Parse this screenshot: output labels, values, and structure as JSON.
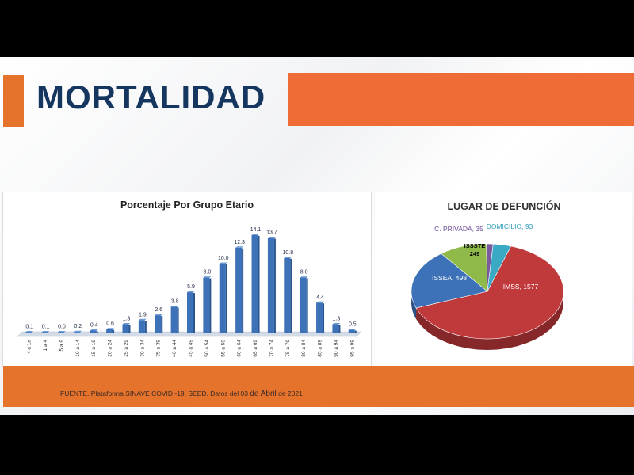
{
  "header": {
    "title": "MORTALIDAD"
  },
  "colors": {
    "orange": "#ef6c37",
    "navy": "#15365f",
    "bar": "#3d72b8"
  },
  "footer": {
    "source_prefix": "FUENTE. Plataforma SINAVE COVID -19, SEED. Datos del 03",
    "source_big": "de Abril",
    "source_suffix": "de 2021"
  },
  "chart_data": [
    {
      "type": "bar",
      "title": "Porcentaje Por Grupo Etario",
      "categories": [
        "< a 1a",
        "1 a 4",
        "5 a 9",
        "10 a 14",
        "15 a 19",
        "20 a 24",
        "25 a 29",
        "30 a 34",
        "35 a 39",
        "40 a 44",
        "45 a 49",
        "50 a 54",
        "55 a 59",
        "60 a 64",
        "65 a 69",
        "70 a 74",
        "75 a 79",
        "80 a 84",
        "85 a 89",
        "90 a 94",
        "95 a 99"
      ],
      "values": [
        0.1,
        0.1,
        0.0,
        0.2,
        0.4,
        0.6,
        1.3,
        1.9,
        2.6,
        3.8,
        5.9,
        8.0,
        10.0,
        12.3,
        14.1,
        13.7,
        10.8,
        8.0,
        4.4,
        1.3,
        0.5
      ],
      "value_labels": [
        "0.1",
        "0.1",
        "0.0",
        "0.2",
        "0.4",
        "0.6",
        "1.3",
        "1.9",
        "2.6",
        "3.8",
        "5.9",
        "8.0",
        "10.0",
        "12.3",
        "14.1",
        "13.7",
        "10.8",
        "8.0",
        "4.4",
        "1.3",
        "0.5"
      ],
      "ylim": [
        0,
        15
      ]
    },
    {
      "type": "pie",
      "title": "LUGAR DE DEFUNCIÓN",
      "slices": [
        {
          "label": "IMSS",
          "value": 1577,
          "text": "IMSS, 1577",
          "color": "#c0393b"
        },
        {
          "label": "ISSEA",
          "value": 498,
          "text": "ISSEA, 498",
          "color": "#3d72b8"
        },
        {
          "label": "ISSSTE",
          "value": 249,
          "text": "ISSSTE\n249",
          "color": "#8fba4a"
        },
        {
          "label": "C. PRIVADA",
          "value": 35,
          "text": "C. PRIVADA, 35",
          "color": "#7b59a0"
        },
        {
          "label": "DOMICILIO",
          "value": 93,
          "text": "DOMICILIO, 93",
          "color": "#3aa9c4"
        }
      ]
    }
  ]
}
